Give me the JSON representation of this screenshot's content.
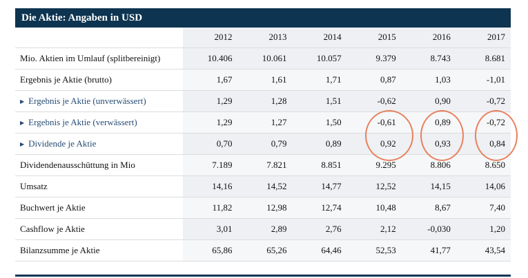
{
  "title": "Die Aktie: Angaben in USD",
  "years": [
    "2012",
    "2013",
    "2014",
    "2015",
    "2016",
    "2017"
  ],
  "rows": [
    {
      "label": "Mio. Aktien im Umlauf (splitbereinigt)",
      "link": false,
      "values": [
        "10.406",
        "10.061",
        "10.057",
        "9.379",
        "8.743",
        "8.681"
      ]
    },
    {
      "label": "Ergebnis je Aktie (brutto)",
      "link": false,
      "values": [
        "1,67",
        "1,61",
        "1,71",
        "0,87",
        "1,03",
        "-1,01"
      ]
    },
    {
      "label": "Ergebnis je Aktie (unverwässert)",
      "link": true,
      "values": [
        "1,29",
        "1,28",
        "1,51",
        "-0,62",
        "0,90",
        "-0,72"
      ]
    },
    {
      "label": "Ergebnis je Aktie (verwässert)",
      "link": true,
      "values": [
        "1,29",
        "1,27",
        "1,50",
        "-0,61",
        "0,89",
        "-0,72"
      ]
    },
    {
      "label": "Dividende je Aktie",
      "link": true,
      "values": [
        "0,70",
        "0,79",
        "0,89",
        "0,92",
        "0,93",
        "0,84"
      ]
    },
    {
      "label": "Dividendenausschüttung in Mio",
      "link": false,
      "values": [
        "7.189",
        "7.821",
        "8.851",
        "9.295",
        "8.806",
        "8.650"
      ]
    },
    {
      "label": "Umsatz",
      "link": false,
      "values": [
        "14,16",
        "14,52",
        "14,77",
        "12,52",
        "14,15",
        "14,06"
      ]
    },
    {
      "label": "Buchwert je Aktie",
      "link": false,
      "values": [
        "11,82",
        "12,98",
        "12,74",
        "10,48",
        "8,67",
        "7,40"
      ]
    },
    {
      "label": "Cashflow je Aktie",
      "link": false,
      "values": [
        "3,01",
        "2,89",
        "2,76",
        "2,12",
        "-0,030",
        "1,20"
      ]
    },
    {
      "label": "Bilanzsumme je Aktie",
      "link": false,
      "values": [
        "65,86",
        "65,26",
        "64,46",
        "52,53",
        "41,77",
        "43,54"
      ]
    }
  ],
  "colors": {
    "header": "#0d3450",
    "highlight_circle": "#e8805e",
    "link_text": "#264c73"
  },
  "highlight_years": [
    "2015",
    "2016",
    "2017"
  ],
  "highlight_rows": [
    "Ergebnis je Aktie (verwässert)",
    "Dividende je Aktie"
  ]
}
